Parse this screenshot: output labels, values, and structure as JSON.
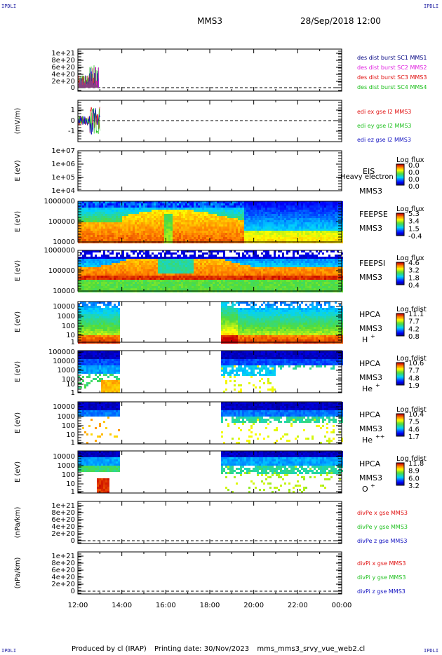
{
  "corners": {
    "tl": "IPDLI",
    "tr": "IPDLI",
    "bl": "IPDLI",
    "br": "IPDLI"
  },
  "header": {
    "spacecraft": "MMS3",
    "datetime": "28/Sep/2018 12:00"
  },
  "footer": {
    "producer": "Produced by cl (IRAP)",
    "printing": "Printing date: 30/Nov/2023",
    "script": "mms_mms3_srvy_vue_web2.cl"
  },
  "xaxis": {
    "ticks": [
      "12:00",
      "14:00",
      "16:00",
      "18:00",
      "20:00",
      "22:00",
      "00:00"
    ]
  },
  "colors": {
    "red": "#e01010",
    "green": "#20c020",
    "blue": "#1010c0",
    "magenta": "#e020e0",
    "navy": "#000080"
  },
  "chart_data": [
    {
      "type": "line",
      "panel": "des-dist",
      "yticks": [
        "1e+21",
        "8e+20",
        "6e+20",
        "4e+20",
        "2e+20",
        "0"
      ],
      "series": [
        {
          "name": "des dist burst SC1 MMS1",
          "color": "#000080"
        },
        {
          "name": "des dist burst SC2 MMS2",
          "color": "#e020e0"
        },
        {
          "name": "des dist burst SC3 MMS3",
          "color": "#e01010"
        },
        {
          "name": "des dist burst SC4 MMS4",
          "color": "#20c020"
        }
      ]
    },
    {
      "type": "line",
      "panel": "edi-e",
      "ylabel": "(mV/m)",
      "yticks": [
        "1",
        "0",
        "-1"
      ],
      "ylim": [
        -1.9,
        1.9
      ],
      "series": [
        {
          "name": "edi ex gse l2 MMS3",
          "color": "#e01010"
        },
        {
          "name": "edi ey gse l2 MMS3",
          "color": "#20c020"
        },
        {
          "name": "edi ez gse l2 MMS3",
          "color": "#1010c0"
        }
      ]
    },
    {
      "type": "heatmap",
      "panel": "eis",
      "ylabel": "E (eV)",
      "yticks": [
        "1e+07",
        "1e+06",
        "1e+05",
        "1e+04"
      ],
      "name": "EIS",
      "sub": "MMS3",
      "overlay": "Heavy electron to",
      "cbar_title": "Log flux",
      "cbar_ticks": [
        "0.0",
        "0.0",
        "0.0",
        "0.0"
      ]
    },
    {
      "type": "heatmap",
      "panel": "feepse",
      "ylabel": "E (eV)",
      "yticks": [
        "1000000",
        "100000",
        "10000"
      ],
      "name": "FEEPSE",
      "sub": "MMS3",
      "cbar_title": "Log flux",
      "cbar_ticks": [
        "5.3",
        "3.4",
        "1.5",
        "-0.4"
      ]
    },
    {
      "type": "heatmap",
      "panel": "feepsi",
      "ylabel": "E (eV)",
      "yticks": [
        "1000000",
        "100000",
        "10000"
      ],
      "name": "FEEPSI",
      "sub": "MMS3",
      "cbar_title": "Log flux",
      "cbar_ticks": [
        "4.6",
        "3.2",
        "1.8",
        "0.4"
      ]
    },
    {
      "type": "heatmap",
      "panel": "hpca-h",
      "ylabel": "E (eV)",
      "yticks": [
        "10000",
        "1000",
        "100",
        "10",
        "1"
      ],
      "name": "HPCA",
      "sub": "MMS3",
      "species": "H",
      "charge": "+",
      "cbar_title": "Log fdist",
      "cbar_ticks": [
        "11.1",
        "7.7",
        "4.2",
        "0.8"
      ]
    },
    {
      "type": "heatmap",
      "panel": "hpca-he1",
      "ylabel": "E (eV)",
      "yticks": [
        "100000",
        "10000",
        "1000",
        "100",
        "10",
        "1"
      ],
      "name": "HPCA",
      "sub": "MMS3",
      "species": "He",
      "charge": "+",
      "cbar_title": "Log fdist",
      "cbar_ticks": [
        "10.6",
        "7.7",
        "4.8",
        "1.9"
      ]
    },
    {
      "type": "heatmap",
      "panel": "hpca-he2",
      "ylabel": "E (eV)",
      "yticks": [
        "10000",
        "1000",
        "100",
        "10",
        "1"
      ],
      "name": "HPCA",
      "sub": "MMS3",
      "species": "He",
      "charge": "++",
      "cbar_title": "Log fdist",
      "cbar_ticks": [
        "10.4",
        "7.5",
        "4.6",
        "1.7"
      ]
    },
    {
      "type": "heatmap",
      "panel": "hpca-o",
      "ylabel": "E (eV)",
      "yticks": [
        "10000",
        "1000",
        "100",
        "10",
        "1"
      ],
      "name": "HPCA",
      "sub": "MMS3",
      "species": "O",
      "charge": "+",
      "cbar_title": "Log fdist",
      "cbar_ticks": [
        "11.8",
        "8.9",
        "6.0",
        "3.2"
      ]
    },
    {
      "type": "line",
      "panel": "divpe",
      "ylabel": "(nPa/km)",
      "yticks": [
        "1e+21",
        "8e+20",
        "6e+20",
        "4e+20",
        "2e+20",
        "0"
      ],
      "series": [
        {
          "name": "divPe x gse MMS3",
          "color": "#e01010"
        },
        {
          "name": "divPe y gse MMS3",
          "color": "#20c020"
        },
        {
          "name": "divPe z gse MMS3",
          "color": "#1010c0"
        }
      ]
    },
    {
      "type": "line",
      "panel": "divpi",
      "ylabel": "(nPa/km)",
      "yticks": [
        "1e+21",
        "8e+20",
        "6e+20",
        "4e+20",
        "2e+20",
        "0"
      ],
      "series": [
        {
          "name": "divPi x gse MMS3",
          "color": "#e01010"
        },
        {
          "name": "divPi y gse MMS3",
          "color": "#20c020"
        },
        {
          "name": "divPi z gse MMS3",
          "color": "#1010c0"
        }
      ]
    }
  ]
}
